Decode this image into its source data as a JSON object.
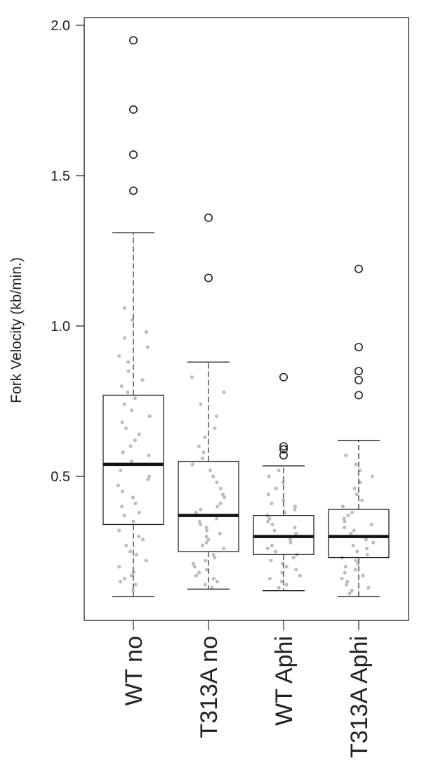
{
  "chart_data": {
    "type": "boxplot",
    "ylabel": "Fork Velocity (kb/min.)",
    "ylim": [
      0.0,
      2.0
    ],
    "yticks": [
      0.5,
      1.0,
      1.5,
      2.0
    ],
    "ytick_labels": [
      "0.5",
      "1.0",
      "1.5",
      "2.0"
    ],
    "categories": [
      "WT no",
      "T313A no",
      "WT Aphi",
      "T313A Aphi"
    ],
    "box_color": "#000000",
    "point_color": "#bdbdbd",
    "groups": [
      {
        "label": "WT no",
        "whisker_low": 0.1,
        "q1": 0.34,
        "median": 0.54,
        "q3": 0.77,
        "whisker_high": 1.31,
        "outliers": [
          1.45,
          1.57,
          1.72,
          1.95
        ],
        "points": [
          0.12,
          0.14,
          0.15,
          0.16,
          0.17,
          0.18,
          0.2,
          0.22,
          0.24,
          0.25,
          0.27,
          0.29,
          0.3,
          0.32,
          0.35,
          0.37,
          0.38,
          0.4,
          0.41,
          0.43,
          0.45,
          0.47,
          0.49,
          0.5,
          0.52,
          0.55,
          0.57,
          0.58,
          0.6,
          0.62,
          0.64,
          0.66,
          0.68,
          0.7,
          0.72,
          0.74,
          0.76,
          0.78,
          0.8,
          0.82,
          0.85,
          0.88,
          0.9,
          0.93,
          0.96,
          0.98,
          1.02,
          1.06
        ]
      },
      {
        "label": "T313A no",
        "whisker_low": 0.125,
        "q1": 0.25,
        "median": 0.37,
        "q3": 0.55,
        "whisker_high": 0.88,
        "outliers": [
          1.16,
          1.36
        ],
        "points": [
          0.13,
          0.14,
          0.15,
          0.16,
          0.17,
          0.18,
          0.19,
          0.2,
          0.21,
          0.22,
          0.23,
          0.24,
          0.26,
          0.27,
          0.28,
          0.29,
          0.3,
          0.31,
          0.32,
          0.33,
          0.34,
          0.35,
          0.36,
          0.38,
          0.39,
          0.4,
          0.41,
          0.43,
          0.44,
          0.46,
          0.48,
          0.5,
          0.52,
          0.54,
          0.56,
          0.58,
          0.6,
          0.63,
          0.66,
          0.7,
          0.74,
          0.78,
          0.83
        ]
      },
      {
        "label": "WT Aphi",
        "whisker_low": 0.12,
        "q1": 0.24,
        "median": 0.3,
        "q3": 0.37,
        "whisker_high": 0.535,
        "outliers": [
          0.57,
          0.59,
          0.6,
          0.83
        ],
        "points": [
          0.13,
          0.14,
          0.15,
          0.16,
          0.17,
          0.18,
          0.19,
          0.2,
          0.21,
          0.22,
          0.23,
          0.24,
          0.25,
          0.26,
          0.27,
          0.28,
          0.29,
          0.3,
          0.31,
          0.32,
          0.33,
          0.34,
          0.35,
          0.36,
          0.37,
          0.38,
          0.39,
          0.4,
          0.41,
          0.42,
          0.44,
          0.46,
          0.48,
          0.5,
          0.52
        ]
      },
      {
        "label": "T313A Aphi",
        "whisker_low": 0.1,
        "q1": 0.23,
        "median": 0.3,
        "q3": 0.39,
        "whisker_high": 0.62,
        "outliers": [
          0.77,
          0.82,
          0.85,
          0.93,
          1.19
        ],
        "points": [
          0.11,
          0.12,
          0.13,
          0.14,
          0.15,
          0.16,
          0.17,
          0.18,
          0.19,
          0.2,
          0.21,
          0.22,
          0.23,
          0.24,
          0.25,
          0.26,
          0.27,
          0.28,
          0.29,
          0.3,
          0.31,
          0.32,
          0.33,
          0.34,
          0.35,
          0.36,
          0.37,
          0.38,
          0.4,
          0.42,
          0.44,
          0.46,
          0.48,
          0.5,
          0.52,
          0.54,
          0.57
        ]
      }
    ]
  }
}
